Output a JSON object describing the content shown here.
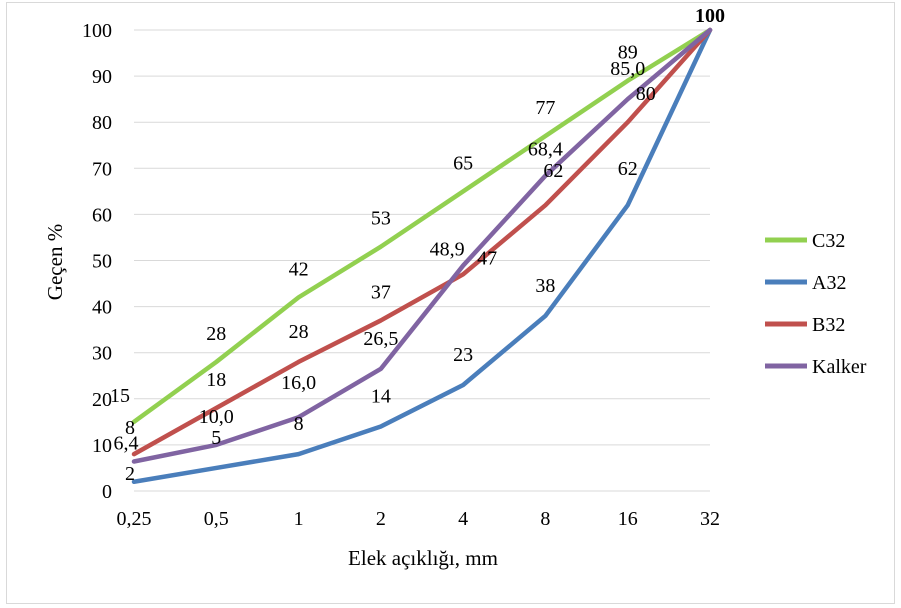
{
  "chart_data": {
    "type": "line",
    "title": "",
    "xlabel": "Elek açıklığı, mm",
    "ylabel": "Geçen %",
    "categories": [
      "0,25",
      "0,5",
      "1",
      "2",
      "4",
      "8",
      "16",
      "32"
    ],
    "ylim": [
      0,
      100
    ],
    "yticks": [
      "0",
      "10",
      "20",
      "30",
      "40",
      "50",
      "60",
      "70",
      "80",
      "90",
      "100"
    ],
    "grid": "horizontal",
    "legend_position": "right",
    "series": [
      {
        "name": "C32",
        "color": "#92d050",
        "values": [
          15,
          28,
          42,
          53,
          65,
          77,
          89,
          100
        ],
        "labels": [
          "15",
          "28",
          "42",
          "53",
          "65",
          "77",
          "89",
          "100"
        ]
      },
      {
        "name": "A32",
        "color": "#4a7ebb",
        "values": [
          2,
          5,
          8,
          14,
          23,
          38,
          62,
          100
        ],
        "labels": [
          "2",
          "5",
          "8",
          "14",
          "23",
          "38",
          "62",
          "100"
        ]
      },
      {
        "name": "B32",
        "color": "#c0504d",
        "values": [
          8,
          18,
          28,
          37,
          47,
          62,
          80,
          100
        ],
        "labels": [
          "8",
          "18",
          "28",
          "37",
          "47",
          "62",
          "80",
          "100"
        ]
      },
      {
        "name": "Kalker",
        "color": "#8064a2",
        "values": [
          6.4,
          10.0,
          16.0,
          26.5,
          48.9,
          68.4,
          85.0,
          100
        ],
        "labels": [
          "6,4",
          "10,0",
          "16,0",
          "26,5",
          "48,9",
          "68,4",
          "85,0",
          "100"
        ]
      }
    ]
  }
}
